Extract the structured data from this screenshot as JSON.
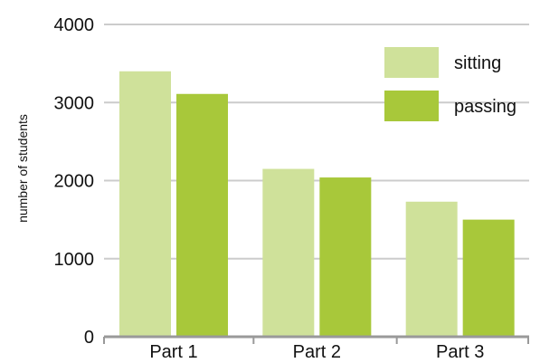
{
  "chart_data": {
    "type": "bar",
    "title": "",
    "xlabel": "",
    "ylabel": "number of students",
    "ylim": [
      0,
      4000
    ],
    "yticks": [
      0,
      1000,
      2000,
      3000,
      4000
    ],
    "categories": [
      "Part 1",
      "Part 2",
      "Part 3"
    ],
    "series": [
      {
        "name": "sitting",
        "values": [
          3400,
          2150,
          1730
        ],
        "color": "#cfe19a"
      },
      {
        "name": "passing",
        "values": [
          3110,
          2040,
          1500
        ],
        "color": "#a8c83a"
      }
    ],
    "grid": true,
    "legend_position": "top-right",
    "gridline_color": "#cccccc",
    "axis_color": "#999999"
  }
}
